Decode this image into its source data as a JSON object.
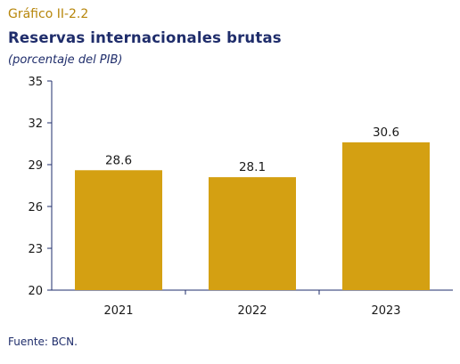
{
  "header": {
    "figure_label": "Gráfico II-2.2",
    "title": "Reservas internacionales brutas",
    "subtitle": "(porcentaje del PIB)"
  },
  "footer": {
    "source": "Fuente: BCN."
  },
  "colors": {
    "bar": "#d4a012",
    "axis": "#1f2d6b",
    "text": "#1a1a1a",
    "accent": "#b7860b"
  },
  "chart_data": {
    "type": "bar",
    "categories": [
      "2021",
      "2022",
      "2023"
    ],
    "values": [
      28.6,
      28.1,
      30.6
    ],
    "data_labels": [
      "28.6",
      "28.1",
      "30.6"
    ],
    "ylim": [
      20,
      35
    ],
    "yticks": [
      20,
      23,
      26,
      29,
      32,
      35
    ],
    "title": "Reservas internacionales brutas",
    "xlabel": "",
    "ylabel": "(porcentaje del PIB)",
    "grid": false,
    "legend": "none"
  }
}
